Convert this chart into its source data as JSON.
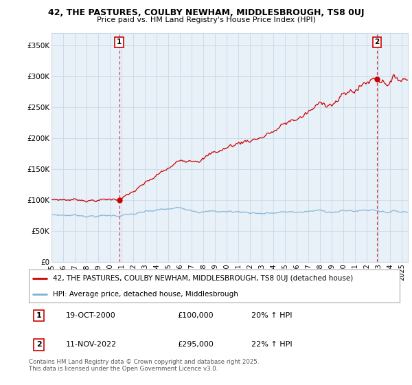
{
  "title1": "42, THE PASTURES, COULBY NEWHAM, MIDDLESBROUGH, TS8 0UJ",
  "title2": "Price paid vs. HM Land Registry's House Price Index (HPI)",
  "ylabel_ticks": [
    "£0",
    "£50K",
    "£100K",
    "£150K",
    "£200K",
    "£250K",
    "£300K",
    "£350K"
  ],
  "ytick_vals": [
    0,
    50000,
    100000,
    150000,
    200000,
    250000,
    300000,
    350000
  ],
  "ylim": [
    0,
    370000
  ],
  "xlim_start": 1995.0,
  "xlim_end": 2025.5,
  "sale1_x": 2000.8,
  "sale1_y": 100000,
  "sale2_x": 2022.87,
  "sale2_y": 295000,
  "sale1_label": "1",
  "sale2_label": "2",
  "sale1_date": "19-OCT-2000",
  "sale1_price": "£100,000",
  "sale1_hpi": "20% ↑ HPI",
  "sale2_date": "11-NOV-2022",
  "sale2_price": "£295,000",
  "sale2_hpi": "22% ↑ HPI",
  "legend1_label": "42, THE PASTURES, COULBY NEWHAM, MIDDLESBROUGH, TS8 0UJ (detached house)",
  "legend2_label": "HPI: Average price, detached house, Middlesbrough",
  "line1_color": "#cc0000",
  "line2_color": "#7ab0d4",
  "vline_color": "#cc0000",
  "marker_color": "#cc0000",
  "grid_color": "#c8d8e8",
  "bg_color": "#ffffff",
  "chart_bg": "#e8f0f8",
  "footer": "Contains HM Land Registry data © Crown copyright and database right 2025.\nThis data is licensed under the Open Government Licence v3.0.",
  "xtick_years": [
    1995,
    1996,
    1997,
    1998,
    1999,
    2000,
    2001,
    2002,
    2003,
    2004,
    2005,
    2006,
    2007,
    2008,
    2009,
    2010,
    2011,
    2012,
    2013,
    2014,
    2015,
    2016,
    2017,
    2018,
    2019,
    2020,
    2021,
    2022,
    2023,
    2024,
    2025
  ]
}
